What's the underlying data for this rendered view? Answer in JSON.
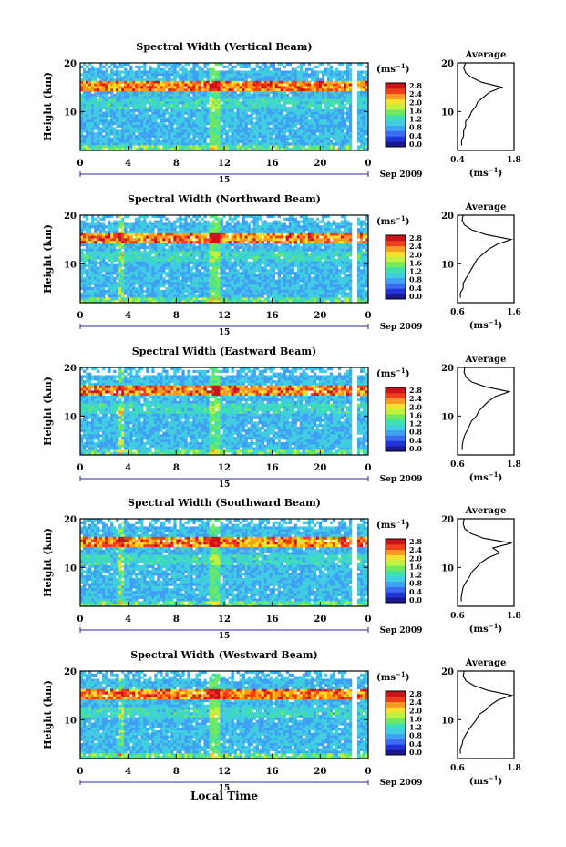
{
  "figure": {
    "xlabel": "Local Time",
    "date_label": "Sep 2009",
    "day_label": "15",
    "colorbar_unit": "(ms",
    "colorbar_unit_exp": "−1",
    "colorbar_unit_close": ")",
    "average_title": "Average",
    "colors": {
      "scale": [
        "#1a1a8c",
        "#2233d8",
        "#3a6cf0",
        "#3fa0f5",
        "#40cde0",
        "#3fe0b0",
        "#70e860",
        "#c0f040",
        "#f5e030",
        "#f59a25",
        "#ee3f1d",
        "#c8141a"
      ]
    }
  },
  "chart_data": [
    {
      "type": "heatmap",
      "title": "Spectral Width (Vertical Beam)",
      "ylabel": "Height (km)",
      "yticks": [
        "20",
        "10"
      ],
      "ylim": [
        2,
        20
      ],
      "xticks": [
        "0",
        "4",
        "8",
        "12",
        "16",
        "20",
        "0"
      ],
      "xlim": [
        0,
        24
      ],
      "colorbar_ticks": [
        "2.8",
        "2.4",
        "2.0",
        "1.6",
        "1.2",
        "0.8",
        "0.4",
        "0.0"
      ],
      "average": {
        "title": "Average",
        "xticks": [
          "0.4",
          "1.8"
        ],
        "xlim": [
          0.4,
          1.8
        ],
        "yticks": [
          "20",
          "10"
        ],
        "xlabel": "(ms",
        "xlabel_exp": "−1",
        "xlabel_close": ")",
        "height": [
          3,
          4,
          5,
          6,
          7,
          8,
          9,
          10,
          11,
          12,
          13,
          14,
          15,
          16,
          17,
          18,
          19,
          20
        ],
        "width": [
          0.5,
          0.5,
          0.55,
          0.55,
          0.6,
          0.6,
          0.7,
          0.75,
          0.85,
          0.9,
          1.05,
          1.2,
          1.5,
          1.0,
          0.75,
          0.6,
          0.55,
          0.6
        ]
      }
    },
    {
      "type": "heatmap",
      "title": "Spectral Width (Northward Beam)",
      "ylabel": "Height (km)",
      "yticks": [
        "20",
        "10"
      ],
      "ylim": [
        2,
        20
      ],
      "xticks": [
        "0",
        "4",
        "8",
        "12",
        "16",
        "20",
        "0"
      ],
      "xlim": [
        0,
        24
      ],
      "colorbar_ticks": [
        "2.8",
        "2.4",
        "2.0",
        "1.6",
        "1.2",
        "0.8",
        "0.4",
        "0.0"
      ],
      "average": {
        "title": "Average",
        "xticks": [
          "0.6",
          "1.6"
        ],
        "xlim": [
          0.6,
          1.6
        ],
        "yticks": [
          "20",
          "10"
        ],
        "xlabel": "(ms",
        "xlabel_exp": "−1",
        "xlabel_close": ")",
        "height": [
          3,
          4,
          5,
          6,
          7,
          8,
          9,
          10,
          11,
          12,
          13,
          14,
          15,
          16,
          17,
          18,
          19,
          20
        ],
        "width": [
          0.65,
          0.65,
          0.7,
          0.7,
          0.75,
          0.8,
          0.85,
          0.9,
          0.95,
          1.05,
          1.15,
          1.3,
          1.55,
          1.1,
          0.85,
          0.72,
          0.68,
          0.7
        ]
      }
    },
    {
      "type": "heatmap",
      "title": "Spectral Width (Eastward Beam)",
      "ylabel": "Height (km)",
      "yticks": [
        "20",
        "10"
      ],
      "ylim": [
        2,
        20
      ],
      "xticks": [
        "0",
        "4",
        "8",
        "12",
        "16",
        "20",
        "0"
      ],
      "xlim": [
        0,
        24
      ],
      "colorbar_ticks": [
        "2.8",
        "2.4",
        "2.0",
        "1.6",
        "1.2",
        "0.8",
        "0.4",
        "0.0"
      ],
      "average": {
        "title": "Average",
        "xticks": [
          "0.6",
          "1.8"
        ],
        "xlim": [
          0.6,
          1.8
        ],
        "yticks": [
          "20",
          "10"
        ],
        "xlabel": "(ms",
        "xlabel_exp": "−1",
        "xlabel_close": ")",
        "height": [
          3,
          4,
          5,
          6,
          7,
          8,
          9,
          10,
          11,
          12,
          13,
          14,
          15,
          16,
          17,
          18,
          19,
          20
        ],
        "width": [
          0.7,
          0.7,
          0.72,
          0.75,
          0.8,
          0.85,
          0.9,
          1.0,
          1.05,
          1.15,
          1.25,
          1.4,
          1.7,
          1.2,
          0.9,
          0.78,
          0.74,
          0.75
        ]
      }
    },
    {
      "type": "heatmap",
      "title": "Spectral Width (Southward Beam)",
      "ylabel": "Height (km)",
      "yticks": [
        "20",
        "10"
      ],
      "ylim": [
        2,
        20
      ],
      "xticks": [
        "0",
        "4",
        "8",
        "12",
        "16",
        "20",
        "0"
      ],
      "xlim": [
        0,
        24
      ],
      "colorbar_ticks": [
        "2.8",
        "2.4",
        "2.0",
        "1.6",
        "1.2",
        "0.8",
        "0.4",
        "0.0"
      ],
      "average": {
        "title": "Average",
        "xticks": [
          "0.6",
          "1.8"
        ],
        "xlim": [
          0.6,
          1.8
        ],
        "yticks": [
          "20",
          "10"
        ],
        "xlabel": "(ms",
        "xlabel_exp": "−1",
        "xlabel_close": ")",
        "height": [
          3,
          4,
          5,
          6,
          7,
          8,
          9,
          10,
          11,
          12,
          13,
          14,
          15,
          16,
          17,
          18,
          19,
          20
        ],
        "width": [
          0.68,
          0.68,
          0.7,
          0.72,
          0.78,
          0.85,
          0.9,
          1.0,
          1.1,
          1.25,
          1.5,
          1.35,
          1.75,
          1.15,
          0.88,
          0.75,
          0.72,
          0.74
        ]
      }
    },
    {
      "type": "heatmap",
      "title": "Spectral Width (Westward Beam)",
      "ylabel": "Height (km)",
      "yticks": [
        "20",
        "10"
      ],
      "ylim": [
        2,
        20
      ],
      "xticks": [
        "0",
        "4",
        "8",
        "12",
        "16",
        "20",
        "0"
      ],
      "xlim": [
        0,
        24
      ],
      "colorbar_ticks": [
        "2.8",
        "2.4",
        "2.0",
        "1.6",
        "1.2",
        "0.8",
        "0.4",
        "0.0"
      ],
      "average": {
        "title": "Average",
        "xticks": [
          "0.6",
          "1.8"
        ],
        "xlim": [
          0.6,
          1.8
        ],
        "yticks": [
          "20",
          "10"
        ],
        "xlabel": "(ms",
        "xlabel_exp": "−1",
        "xlabel_close": ")",
        "height": [
          3,
          4,
          5,
          6,
          7,
          8,
          9,
          10,
          11,
          12,
          13,
          14,
          15,
          16,
          17,
          18,
          19,
          20
        ],
        "width": [
          0.66,
          0.66,
          0.7,
          0.72,
          0.78,
          0.84,
          0.92,
          1.0,
          1.05,
          1.2,
          1.3,
          1.45,
          1.75,
          1.25,
          0.95,
          0.78,
          0.72,
          0.74
        ]
      }
    }
  ]
}
